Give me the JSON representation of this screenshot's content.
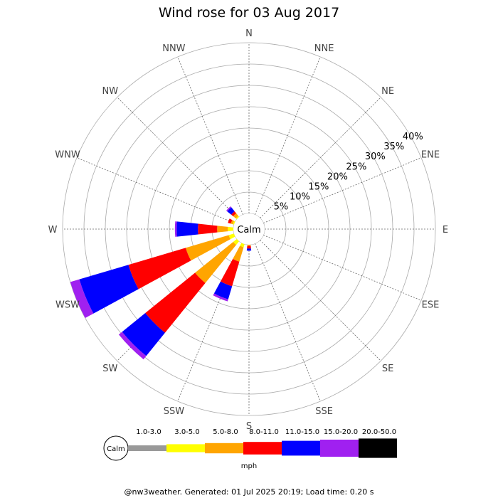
{
  "chart_data": {
    "type": "wind-rose",
    "title": "Wind rose for 03 Aug 2017",
    "calm_label": "Calm",
    "directions": [
      "N",
      "NNE",
      "NE",
      "ENE",
      "E",
      "ESE",
      "SE",
      "SSE",
      "S",
      "SSW",
      "SW",
      "WSW",
      "W",
      "WNW",
      "NW",
      "NNW"
    ],
    "radial_ticks": [
      "5%",
      "10%",
      "15%",
      "20%",
      "25%",
      "30%",
      "35%",
      "40%"
    ],
    "radial_values": [
      5,
      10,
      15,
      20,
      25,
      30,
      35,
      40
    ],
    "rmax": 40,
    "speed_bins": [
      {
        "label": "1.0-3.0",
        "color": "#999999"
      },
      {
        "label": "3.0-5.0",
        "color": "#ffff00"
      },
      {
        "label": "5.0-8.0",
        "color": "#ffa500"
      },
      {
        "label": "8.0-11.0",
        "color": "#ff0000"
      },
      {
        "label": "11.0-15.0",
        "color": "#0000ff"
      },
      {
        "label": "15.0-20.0",
        "color": "#a020f0"
      },
      {
        "label": "20.0-50.0",
        "color": "#000000"
      }
    ],
    "legend_unit": "mph",
    "sectors": [
      {
        "direction": "NW",
        "values": [
          0,
          0.3,
          0.8,
          0.6,
          1.2,
          0.3,
          0
        ]
      },
      {
        "direction": "WNW",
        "values": [
          0,
          0.3,
          0.5,
          0.7,
          0,
          0,
          0
        ]
      },
      {
        "direction": "W",
        "values": [
          0,
          1.3,
          2.5,
          4.5,
          5.0,
          0.4,
          0
        ]
      },
      {
        "direction": "WSW",
        "values": [
          0,
          1.3,
          10.5,
          14.0,
          12.0,
          2.2,
          0
        ]
      },
      {
        "direction": "SW",
        "values": [
          0,
          1.1,
          11.5,
          15.0,
          7.0,
          1.0,
          0
        ]
      },
      {
        "direction": "SSW",
        "values": [
          0,
          0.8,
          3.5,
          6.0,
          3.2,
          0.5,
          0
        ]
      },
      {
        "direction": "S",
        "values": [
          0,
          0,
          0.3,
          0.6,
          0.5,
          0,
          0
        ]
      }
    ]
  },
  "footer": "@nw3weather. Generated: 01 Jul 2025 20:19; Load time: 0.20 s"
}
